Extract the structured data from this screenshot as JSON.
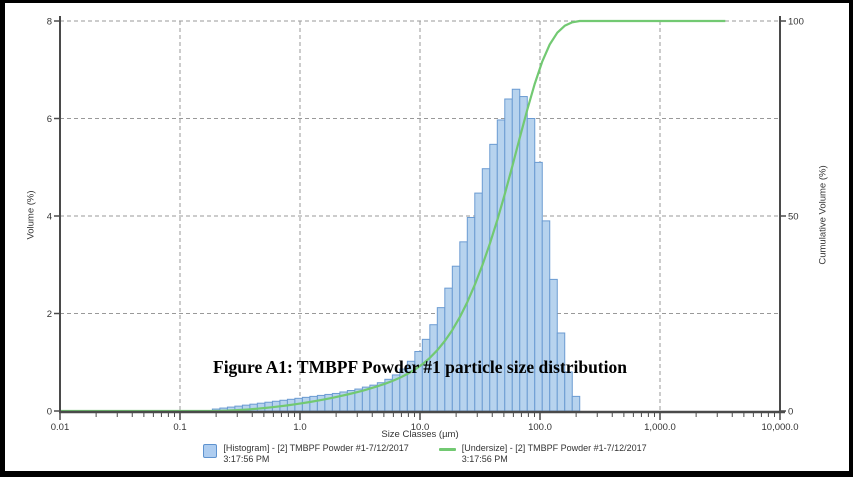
{
  "figure": {
    "title": "Figure A1: TMBPF Powder #1 particle size distribution"
  },
  "chart_data": {
    "type": "bar",
    "subtype": "particle size distribution: volume histogram + cumulative undersize curve",
    "x_scale": "log",
    "xlabel": "Size Classes (µm)",
    "ylabel_left": "Volume (%)",
    "ylabel_right": "Cumulative Volume (%)",
    "xlim": [
      0.01,
      10000
    ],
    "ylim_left": [
      0,
      8
    ],
    "ylim_right": [
      0,
      100
    ],
    "x_ticks": [
      0.01,
      0.1,
      1,
      10,
      100,
      1000,
      10000
    ],
    "x_tick_labels": [
      "0.01",
      "0.1",
      "1.0",
      "10.0",
      "100.0",
      "1,000.0",
      "10,000.0"
    ],
    "y_ticks_left": [
      0,
      2,
      4,
      6,
      8
    ],
    "y_tick_labels_left": [
      "0",
      "2",
      "4",
      "6",
      "8"
    ],
    "y_ticks_right": [
      0,
      50,
      100
    ],
    "y_tick_labels_right": [
      "0",
      "50",
      "100"
    ],
    "grid": "dashed gray; horizontal at left-axis 2/4/6/8, vertical at each decade 0.1-1000",
    "series": [
      {
        "name": "[Histogram] - [2] TMBPF Powder #1-7/12/2017 3:17:56 PM",
        "type": "bar",
        "axis": "left",
        "bins_per_decade": 16,
        "bin_centers_um": [
          0.2,
          0.231,
          0.267,
          0.308,
          0.356,
          0.411,
          0.474,
          0.548,
          0.633,
          0.731,
          0.844,
          0.974,
          1.125,
          1.299,
          1.5,
          1.732,
          2.0,
          2.31,
          2.667,
          3.079,
          3.556,
          4.106,
          4.741,
          5.474,
          6.321,
          7.299,
          8.428,
          9.732,
          11.24,
          12.98,
          14.98,
          17.3,
          19.98,
          23.07,
          26.63,
          30.75,
          35.51,
          41.0,
          47.35,
          54.67,
          63.13,
          72.89,
          84.16,
          97.18,
          112.2,
          129.6,
          149.6,
          172.8,
          199.5
        ],
        "volume_percent": [
          0.04,
          0.06,
          0.08,
          0.1,
          0.12,
          0.14,
          0.16,
          0.18,
          0.2,
          0.22,
          0.24,
          0.26,
          0.28,
          0.3,
          0.32,
          0.34,
          0.36,
          0.39,
          0.42,
          0.45,
          0.49,
          0.53,
          0.58,
          0.65,
          0.74,
          0.86,
          1.02,
          1.22,
          1.47,
          1.77,
          2.12,
          2.52,
          2.97,
          3.47,
          3.97,
          4.47,
          4.97,
          5.47,
          5.97,
          6.4,
          6.6,
          6.45,
          6.0,
          5.1,
          3.9,
          2.7,
          1.6,
          0.8,
          0.3
        ]
      },
      {
        "name": "[Undersize] - [2] TMBPF Powder #1-7/12/2017 3:17:56 PM",
        "type": "line",
        "axis": "right",
        "derived_from": "running cumulative of histogram, normalized to 100%",
        "x_start_um": 0.01,
        "x_end_um": 3500
      }
    ],
    "colors": {
      "bar_fill": "#b7d3ee",
      "bar_stroke": "#6b9bd2",
      "undersize_line": "#72c972",
      "gridline": "#999999",
      "axis": "#4a4a4a",
      "tick_text": "#333333",
      "title_text": "#000000"
    }
  },
  "legend": {
    "items": [
      {
        "swatch": "histogram-square",
        "label": "[Histogram] - [2] TMBPF Powder #1-7/12/2017",
        "time": "3:17:56 PM"
      },
      {
        "swatch": "undersize-line",
        "label": "[Undersize] - [2] TMBPF Powder #1-7/12/2017",
        "time": "3:17:56 PM"
      }
    ]
  }
}
